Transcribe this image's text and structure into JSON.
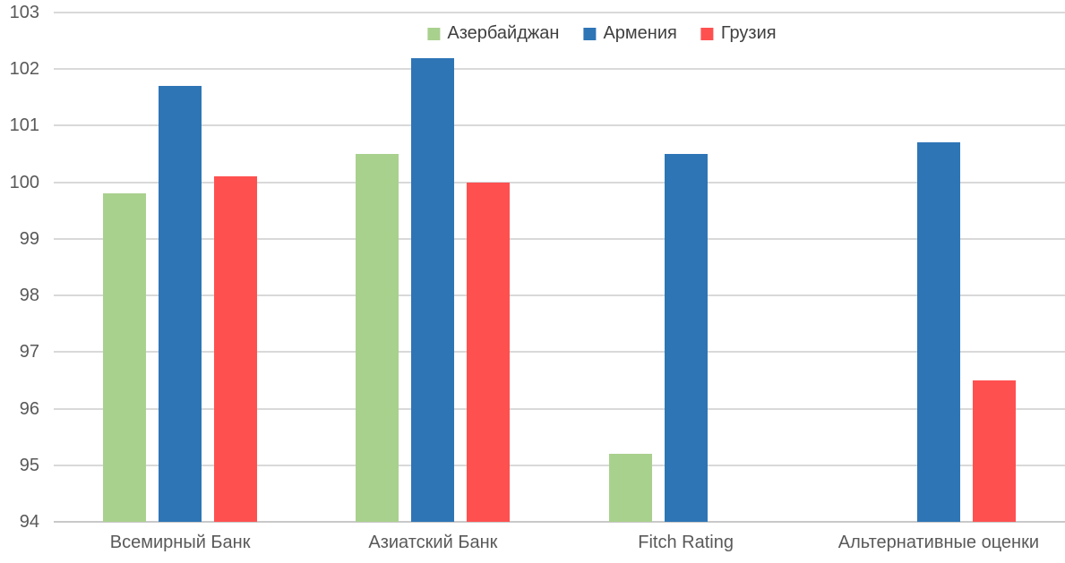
{
  "chart_data": {
    "type": "bar",
    "title": "",
    "categories": [
      "Всемирный Банк",
      "Азиатский Банк",
      "Fitch Rating",
      "Альтернативные оценки"
    ],
    "series": [
      {
        "name": "Азербайджан",
        "color": "#a9d18e",
        "values": [
          99.8,
          100.5,
          95.2,
          null
        ]
      },
      {
        "name": "Армения",
        "color": "#2e75b6",
        "values": [
          101.7,
          102.2,
          100.5,
          100.7
        ]
      },
      {
        "name": "Грузия",
        "color": "#ff5050",
        "values": [
          100.1,
          100.0,
          null,
          96.5
        ]
      }
    ],
    "xlabel": "",
    "ylabel": "",
    "ylim": [
      94,
      103
    ],
    "yticks": [
      94,
      95,
      96,
      97,
      98,
      99,
      100,
      101,
      102,
      103
    ],
    "grid": true,
    "legend_position": "top-center"
  },
  "colors": {
    "background": "#ffffff",
    "gridline": "#d9d9d9",
    "axis_line": "#c8c8c8",
    "axis_text": "#595959",
    "legend_text": "#404040"
  }
}
